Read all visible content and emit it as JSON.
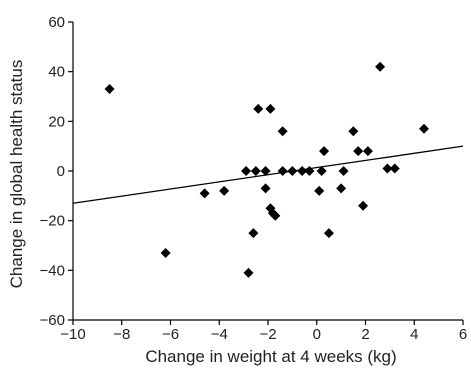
{
  "chart_data": {
    "type": "scatter",
    "title": "",
    "xlabel": "Change in weight at 4 weeks (kg)",
    "ylabel": "Change in global health status",
    "xlim": [
      -10,
      6
    ],
    "ylim": [
      -60,
      60
    ],
    "x_ticks": [
      -10,
      -8,
      -6,
      -4,
      -2,
      0,
      2,
      4,
      6
    ],
    "y_ticks": [
      -60,
      -40,
      -20,
      0,
      20,
      40,
      60
    ],
    "x_tick_labels": [
      "−10",
      "−8",
      "−6",
      "−4",
      "−2",
      "0",
      "2",
      "4",
      "6"
    ],
    "y_tick_labels": [
      "−60",
      "−40",
      "−20",
      "0",
      "20",
      "40",
      "60"
    ],
    "grid": false,
    "marker": "diamond",
    "color": "#000000",
    "points": [
      {
        "x": -8.5,
        "y": 33
      },
      {
        "x": -6.2,
        "y": -33
      },
      {
        "x": -4.6,
        "y": -9
      },
      {
        "x": -3.8,
        "y": -8
      },
      {
        "x": -2.9,
        "y": 0
      },
      {
        "x": -2.8,
        "y": -41
      },
      {
        "x": -2.6,
        "y": -25
      },
      {
        "x": -2.5,
        "y": 0
      },
      {
        "x": -2.4,
        "y": 25
      },
      {
        "x": -2.1,
        "y": 0
      },
      {
        "x": -2.1,
        "y": -7
      },
      {
        "x": -1.9,
        "y": 25
      },
      {
        "x": -1.9,
        "y": -15
      },
      {
        "x": -1.8,
        "y": -17
      },
      {
        "x": -1.7,
        "y": -18
      },
      {
        "x": -1.4,
        "y": 16
      },
      {
        "x": -1.4,
        "y": 0
      },
      {
        "x": -1.0,
        "y": 0
      },
      {
        "x": -0.6,
        "y": 0
      },
      {
        "x": -0.3,
        "y": 0
      },
      {
        "x": 0.1,
        "y": -8
      },
      {
        "x": 0.2,
        "y": 0
      },
      {
        "x": 0.3,
        "y": 8
      },
      {
        "x": 0.5,
        "y": -25
      },
      {
        "x": 1.0,
        "y": -7
      },
      {
        "x": 1.1,
        "y": 0
      },
      {
        "x": 1.5,
        "y": 16
      },
      {
        "x": 1.7,
        "y": 8
      },
      {
        "x": 1.9,
        "y": -14
      },
      {
        "x": 2.1,
        "y": 8
      },
      {
        "x": 2.6,
        "y": 42
      },
      {
        "x": 2.9,
        "y": 1
      },
      {
        "x": 3.2,
        "y": 1
      },
      {
        "x": 4.4,
        "y": 17
      }
    ],
    "trend_line": {
      "x": [
        -10,
        6
      ],
      "y": [
        -13,
        10
      ]
    }
  }
}
